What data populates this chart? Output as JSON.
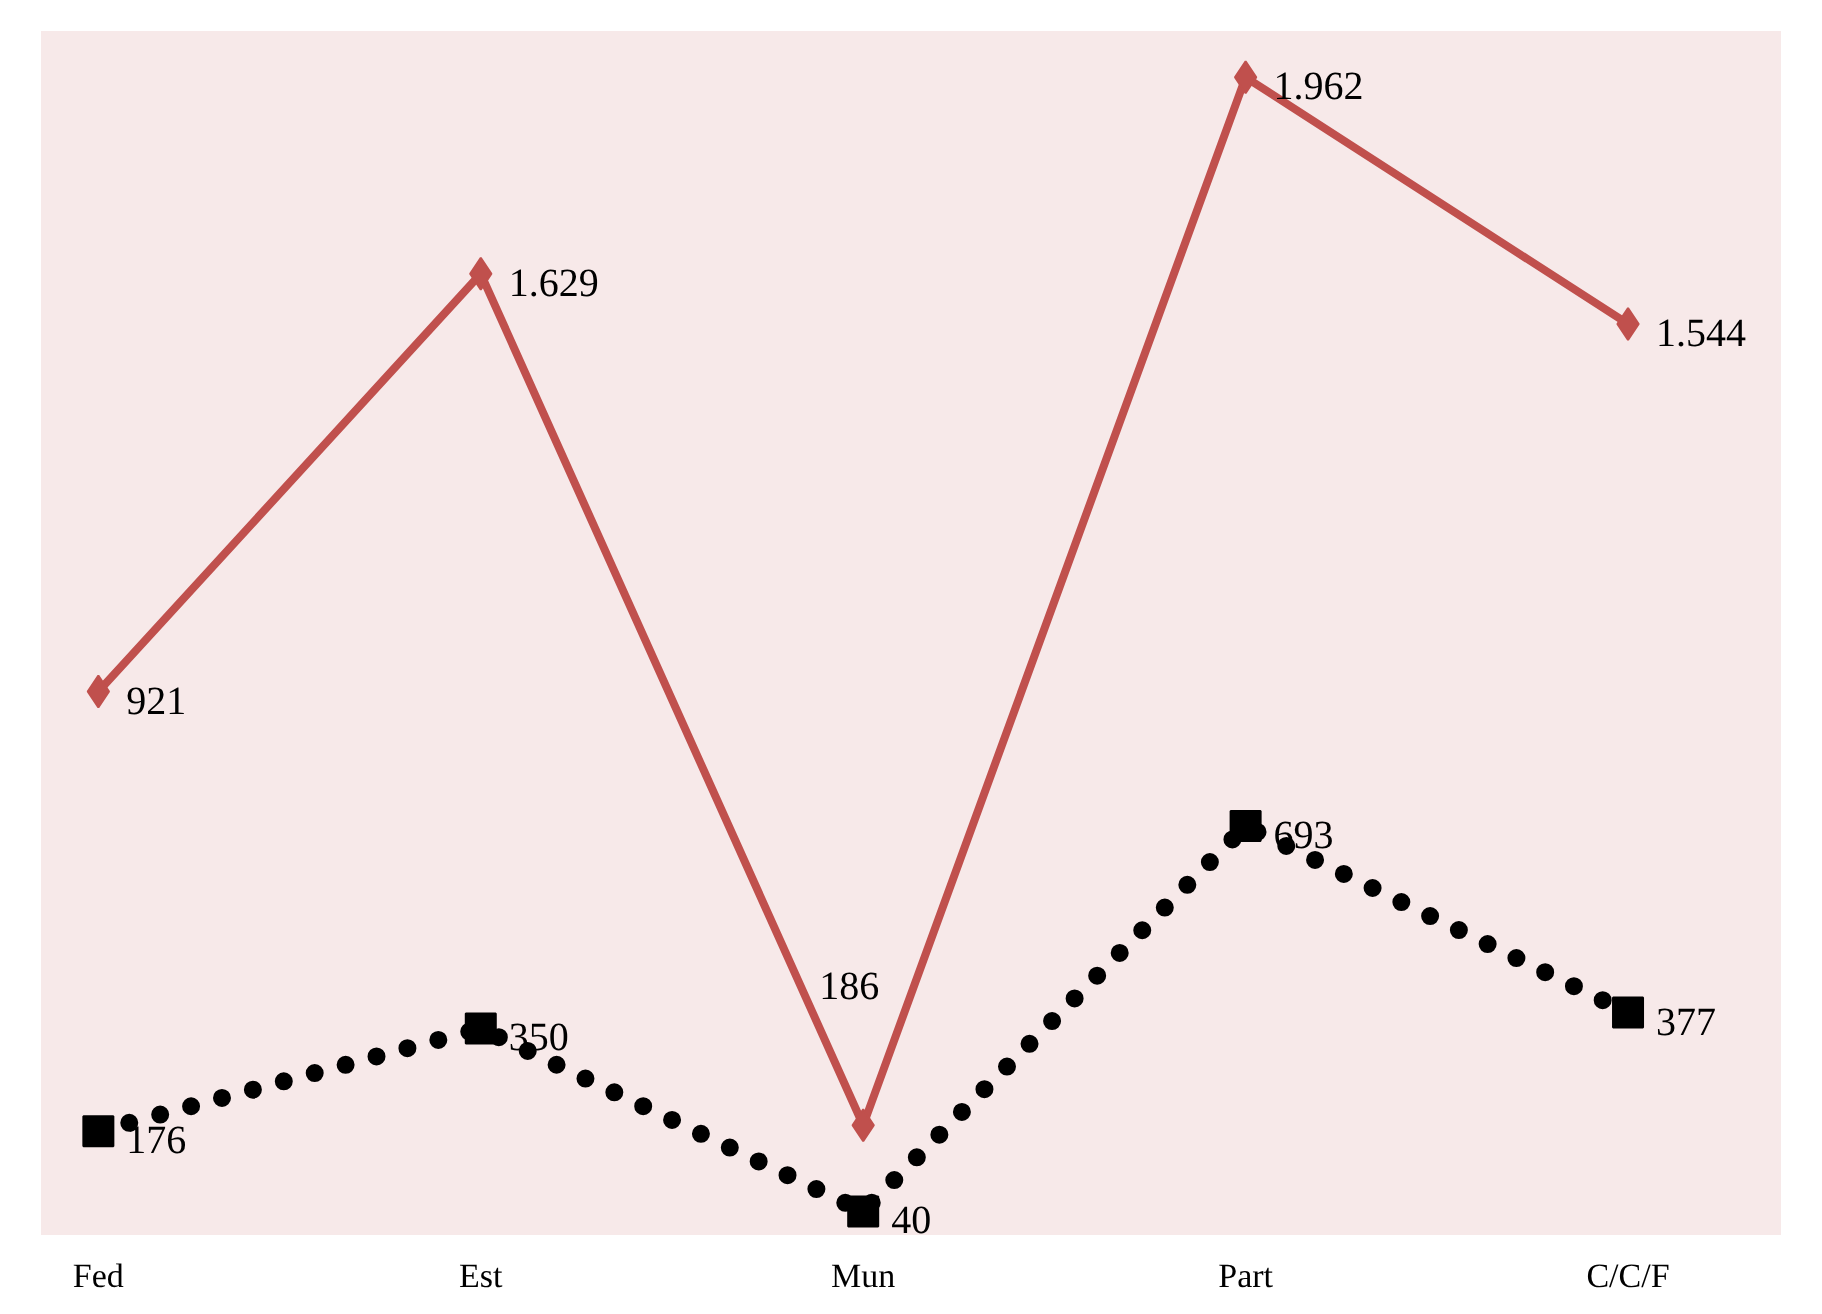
{
  "chart_data": {
    "type": "line",
    "categories": [
      "Fed",
      "Est",
      "Mun",
      "Part",
      "C/C/F"
    ],
    "series": [
      {
        "color": "#c0504d",
        "marker": "diamond",
        "line_style": "solid",
        "values": [
          921,
          1629,
          186,
          1962,
          1544
        ],
        "value_labels": [
          "921",
          "1.629",
          "186",
          "1.962",
          "1.544"
        ]
      },
      {
        "color": "#000000",
        "marker": "square",
        "line_style": "dotted",
        "values": [
          176,
          350,
          40,
          693,
          377
        ],
        "value_labels": [
          "176",
          "350",
          "40",
          "693",
          "377"
        ]
      }
    ],
    "grid": false
  }
}
